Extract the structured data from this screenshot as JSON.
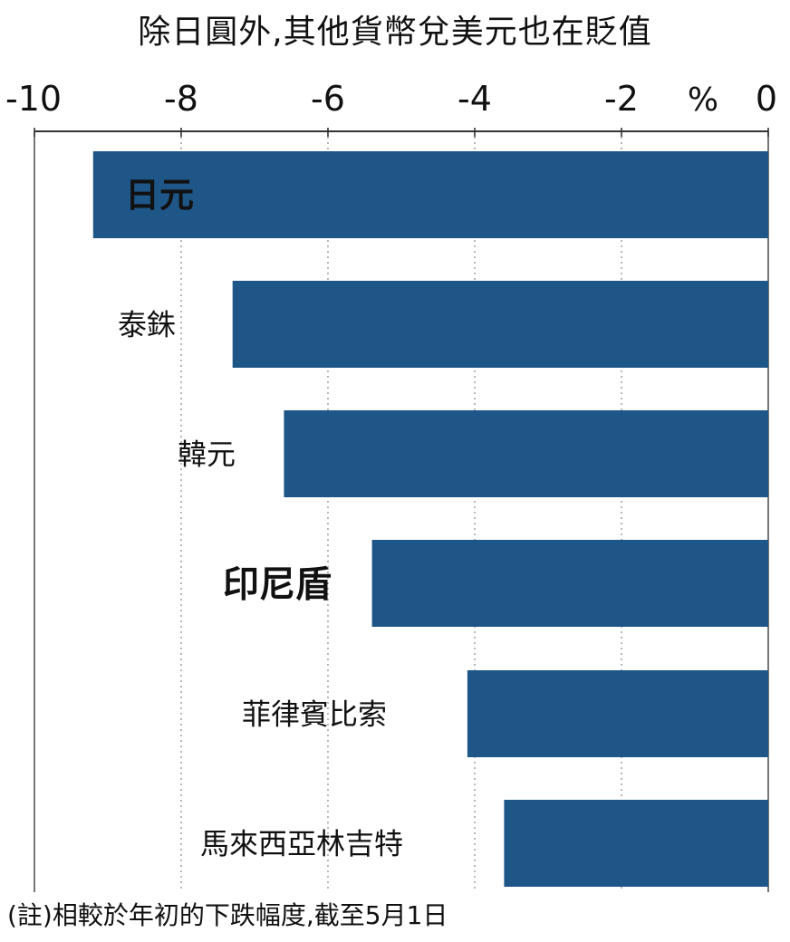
{
  "chart_data": {
    "type": "bar",
    "orientation": "horizontal",
    "title": "除日圓外,其他貨幣兌美元也在貶值",
    "unit": "%",
    "categories": [
      "日元",
      "泰銖",
      "韓元",
      "印尼盾",
      "菲律賓比索",
      "馬來西亞林吉特"
    ],
    "values": [
      -9.2,
      -7.3,
      -6.6,
      -5.4,
      -4.1,
      -3.6
    ],
    "xlim": [
      -10,
      0
    ],
    "xticks": [
      -10,
      -8,
      -6,
      -4,
      -2,
      0
    ],
    "xtick_labels": [
      "-10",
      "-8",
      "-6",
      "-4",
      "-2",
      "0"
    ],
    "grid": true,
    "bar_color": "#1f5688",
    "note": "(註)相較於年初的下跌幅度,截至5月1日"
  }
}
